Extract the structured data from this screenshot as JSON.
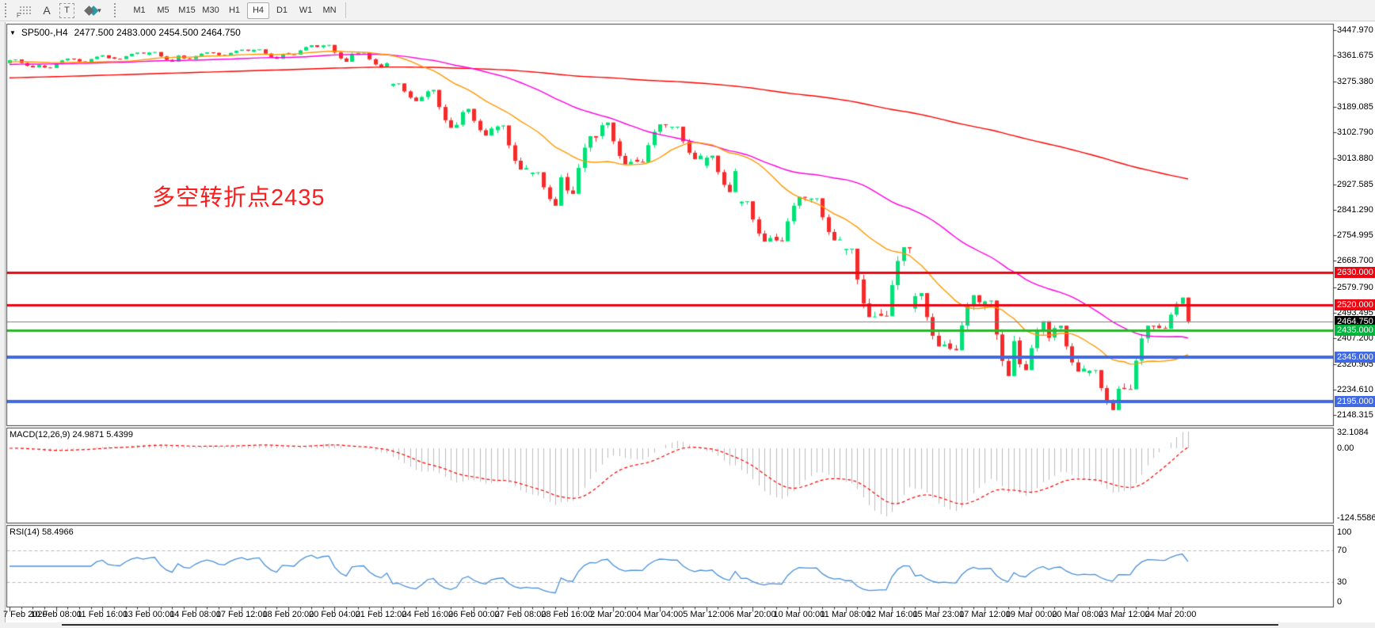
{
  "toolbar": {
    "icons": {
      "f": "F",
      "a": "A",
      "t": "T"
    },
    "timeframes": [
      {
        "label": "M1",
        "active": false
      },
      {
        "label": "M5",
        "active": false
      },
      {
        "label": "M15",
        "active": false
      },
      {
        "label": "M30",
        "active": false
      },
      {
        "label": "H1",
        "active": false
      },
      {
        "label": "H4",
        "active": true
      },
      {
        "label": "D1",
        "active": false
      },
      {
        "label": "W1",
        "active": false
      },
      {
        "label": "MN",
        "active": false
      }
    ]
  },
  "chart": {
    "symbol_period": "SP500-,H4",
    "ohlc_text": "2477.500 2483.000 2454.500 2464.750",
    "annotation": "多空转折点2435",
    "annotation_color": "#ff1c1c",
    "price_axis": [
      "3447.970",
      "3361.675",
      "3275.380",
      "3189.085",
      "3102.790",
      "3013.880",
      "2927.585",
      "2841.290",
      "2754.995",
      "2668.700",
      "2579.790",
      "2493.495",
      "2407.200",
      "2320.905",
      "2234.610",
      "2148.315"
    ],
    "price_badges": [
      {
        "text": "2630.000",
        "bg": "#ee0512"
      },
      {
        "text": "2520.000",
        "bg": "#ee0512"
      },
      {
        "text": "2464.750",
        "bg": "#000000"
      },
      {
        "text": "2435.000",
        "bg": "#00b43c"
      },
      {
        "text": "2345.000",
        "bg": "#4169e1"
      },
      {
        "text": "2195.000",
        "bg": "#4169e1"
      }
    ],
    "hlines": [
      {
        "price": 2630,
        "color": "#ee0512",
        "width": 3
      },
      {
        "price": 2520,
        "color": "#ee0512",
        "width": 3
      },
      {
        "price": 2464.75,
        "color": "#808080",
        "width": 1
      },
      {
        "price": 2435,
        "color": "#2db52d",
        "width": 3
      },
      {
        "price": 2345,
        "color": "#4169e1",
        "width": 4
      },
      {
        "price": 2195,
        "color": "#4169e1",
        "width": 4
      }
    ],
    "colors": {
      "up": "#00e276",
      "down": "#f52b2b",
      "ma_fast": "#ff9800",
      "ma_mid": "#ff00e0",
      "ma_slow": "#ff0000",
      "frame": "#3f3f3f",
      "bg": "#ffffff"
    }
  },
  "macd_panel": {
    "label": "MACD(12,26,9) 24.9871 5.4399",
    "axis_max": "32.1084",
    "axis_zero": "0.00",
    "axis_min": "-124.5586",
    "hist_color": "#bdbdbd",
    "signal_color": "#ff0000"
  },
  "rsi_panel": {
    "label": "RSI(14) 58.4966",
    "axis": [
      "100",
      "70",
      "30",
      "0"
    ],
    "levels": [
      70,
      30
    ],
    "line_color": "#4a90d9",
    "level_color": "#b8b8b8"
  },
  "time_axis": {
    "labels": [
      "7 Feb 2020",
      "10 Feb 08:00",
      "11 Feb 16:00",
      "13 Feb 00:00",
      "14 Feb 08:00",
      "17 Feb 12:00",
      "18 Feb 20:00",
      "20 Feb 04:00",
      "21 Feb 12:00",
      "24 Feb 16:00",
      "26 Feb 00:00",
      "27 Feb 08:00",
      "28 Feb 16:00",
      "2 Mar 20:00",
      "4 Mar 04:00",
      "5 Mar 12:00",
      "6 Mar 20:00",
      "10 Mar 00:00",
      "11 Mar 08:00",
      "12 Mar 16:00",
      "15 Mar 23:00",
      "17 Mar 12:00",
      "19 Mar 00:00",
      "20 Mar 08:00",
      "23 Mar 12:00",
      "24 Mar 20:00"
    ]
  },
  "chart_data": {
    "type": "candlestick",
    "symbol": "SP500-",
    "timeframe": "H4",
    "last_bar_ohlc": {
      "open": 2477.5,
      "high": 2483.0,
      "low": 2454.5,
      "close": 2464.75
    },
    "bars_per_day": 6,
    "daily_ohlc": [
      [
        "7 Feb 2020",
        3336,
        3349,
        3322,
        3330
      ],
      [
        "10 Feb",
        3328,
        3352,
        3320,
        3349
      ],
      [
        "11 Feb",
        3350,
        3363,
        3340,
        3353
      ],
      [
        "12 Feb",
        3356,
        3372,
        3350,
        3369
      ],
      [
        "13 Feb",
        3365,
        3374,
        3341,
        3362
      ],
      [
        "14 Feb",
        3362,
        3373,
        3350,
        3370
      ],
      [
        "17 Feb",
        3371,
        3382,
        3362,
        3378
      ],
      [
        "18 Feb",
        3375,
        3383,
        3351,
        3367
      ],
      [
        "19 Feb",
        3370,
        3397,
        3365,
        3391
      ],
      [
        "20 Feb",
        3390,
        3398,
        3341,
        3368
      ],
      [
        "21 Feb",
        3367,
        3372,
        3322,
        3336
      ],
      [
        "24 Feb",
        3260,
        3268,
        3208,
        3222
      ],
      [
        "25 Feb",
        3222,
        3246,
        3118,
        3128
      ],
      [
        "26 Feb",
        3128,
        3182,
        3092,
        3116
      ],
      [
        "27 Feb",
        3110,
        3126,
        2977,
        2982
      ],
      [
        "28 Feb",
        2962,
        2968,
        2855,
        2951
      ],
      [
        "2 Mar",
        2952,
        3090,
        2895,
        3085
      ],
      [
        "3 Mar",
        3090,
        3136,
        2995,
        3003
      ],
      [
        "4 Mar",
        3010,
        3130,
        3002,
        3127
      ],
      [
        "5 Mar",
        3120,
        3122,
        3012,
        3024
      ],
      [
        "6 Mar",
        2990,
        3024,
        2901,
        2972
      ],
      [
        "9 Mar",
        2863,
        2870,
        2734,
        2746
      ],
      [
        "10 Mar",
        2750,
        2885,
        2735,
        2882
      ],
      [
        "11 Mar",
        2875,
        2880,
        2738,
        2741
      ],
      [
        "12 Mar",
        2705,
        2710,
        2479,
        2481
      ],
      [
        "13 Mar",
        2490,
        2715,
        2482,
        2711
      ],
      [
        "16 Mar",
        2508,
        2560,
        2380,
        2386
      ],
      [
        "17 Mar",
        2390,
        2553,
        2367,
        2529
      ],
      [
        "18 Mar",
        2520,
        2535,
        2280,
        2398
      ],
      [
        "19 Mar",
        2400,
        2465,
        2300,
        2409
      ],
      [
        "20 Mar",
        2410,
        2450,
        2295,
        2305
      ],
      [
        "23 Mar",
        2290,
        2300,
        2165,
        2237
      ],
      [
        "24 Mar",
        2240,
        2450,
        2235,
        2447
      ],
      [
        "25 Mar",
        2450,
        2545,
        2440,
        2464.75
      ]
    ],
    "moving_averages": [
      {
        "period": 200,
        "color": "#ff0000"
      },
      {
        "period": 50,
        "color": "#ff00e0"
      },
      {
        "period": 20,
        "color": "#ff9800"
      }
    ],
    "horizontal_levels": [
      2630,
      2520,
      2435,
      2345,
      2195
    ],
    "current_price": 2464.75,
    "macd": {
      "fast": 12,
      "slow": 26,
      "signal": 9,
      "current_values": "24.9871 5.4399",
      "display_max": 32.1084,
      "display_min": -124.5586
    },
    "rsi": {
      "period": 14,
      "current": 58.4966,
      "levels": [
        70,
        30
      ],
      "range": [
        0,
        100
      ]
    }
  }
}
